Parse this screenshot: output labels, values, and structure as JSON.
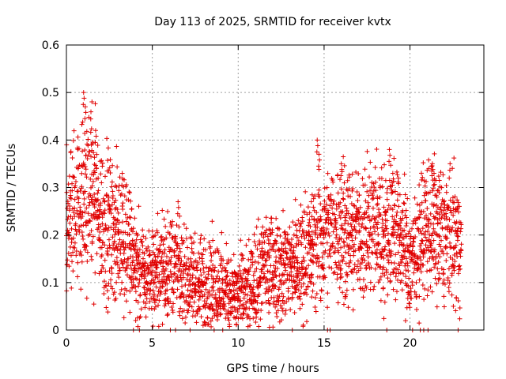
{
  "chart_data": {
    "type": "scatter",
    "title": "Day 113 of 2025, SRMTID for receiver kvtx",
    "xlabel": "GPS time / hours",
    "ylabel": "SRMTID / TECUs",
    "xlim": [
      0,
      24.3
    ],
    "ylim": [
      0,
      0.6
    ],
    "x_ticks": [
      0,
      5,
      10,
      15,
      20
    ],
    "x_tick_labels": [
      "0",
      "5",
      "10",
      "15",
      "20"
    ],
    "y_ticks": [
      0,
      0.1,
      0.2,
      0.3,
      0.4,
      0.5,
      0.6
    ],
    "y_tick_labels": [
      "0",
      "0.1",
      "0.2",
      "0.3",
      "0.4",
      "0.5",
      "0.6"
    ],
    "grid": true,
    "marker": "plus",
    "point_color": "#e00000",
    "trend": [
      [
        0.0,
        0.2
      ],
      [
        0.5,
        0.26
      ],
      [
        1.0,
        0.27
      ],
      [
        1.5,
        0.29
      ],
      [
        2.0,
        0.24
      ],
      [
        2.5,
        0.22
      ],
      [
        3.0,
        0.21
      ],
      [
        3.5,
        0.19
      ],
      [
        4.0,
        0.14
      ],
      [
        4.5,
        0.11
      ],
      [
        5.0,
        0.12
      ],
      [
        5.5,
        0.13
      ],
      [
        6.0,
        0.14
      ],
      [
        6.5,
        0.12
      ],
      [
        7.0,
        0.1
      ],
      [
        7.5,
        0.1
      ],
      [
        8.0,
        0.09
      ],
      [
        8.5,
        0.1
      ],
      [
        9.0,
        0.09
      ],
      [
        9.5,
        0.08
      ],
      [
        10.0,
        0.07
      ],
      [
        10.5,
        0.07
      ],
      [
        11.0,
        0.1
      ],
      [
        11.5,
        0.13
      ],
      [
        12.0,
        0.14
      ],
      [
        12.5,
        0.13
      ],
      [
        13.0,
        0.14
      ],
      [
        13.5,
        0.14
      ],
      [
        14.0,
        0.16
      ],
      [
        14.5,
        0.18
      ],
      [
        15.0,
        0.19
      ],
      [
        15.5,
        0.21
      ],
      [
        16.0,
        0.22
      ],
      [
        16.5,
        0.2
      ],
      [
        17.0,
        0.2
      ],
      [
        17.5,
        0.21
      ],
      [
        18.0,
        0.22
      ],
      [
        18.5,
        0.2
      ],
      [
        19.0,
        0.22
      ],
      [
        19.5,
        0.2
      ],
      [
        20.0,
        0.14
      ],
      [
        20.5,
        0.18
      ],
      [
        21.0,
        0.22
      ],
      [
        21.5,
        0.21
      ],
      [
        22.0,
        0.2
      ],
      [
        22.5,
        0.19
      ],
      [
        23.0,
        0.18
      ]
    ],
    "spikes": [
      [
        1.0,
        0.5
      ],
      [
        1.1,
        0.47
      ],
      [
        1.45,
        0.39
      ],
      [
        1.7,
        0.42
      ],
      [
        3.25,
        0.33
      ],
      [
        6.5,
        0.27
      ],
      [
        14.6,
        0.4
      ],
      [
        14.7,
        0.37
      ],
      [
        16.0,
        0.35
      ],
      [
        18.8,
        0.38
      ],
      [
        19.0,
        0.33
      ],
      [
        21.3,
        0.35
      ],
      [
        21.4,
        0.33
      ]
    ],
    "zero_points": [
      3.9,
      4.25,
      6.05,
      6.35,
      7.2,
      8.6,
      9.1,
      13.15,
      15.2,
      15.35,
      18.65,
      20.15,
      20.6,
      20.8,
      21.05,
      22.8
    ]
  }
}
